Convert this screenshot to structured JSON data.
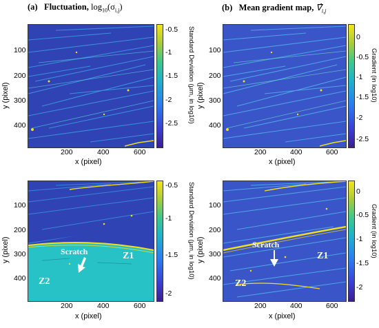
{
  "titles": {
    "a_label": "(a)",
    "a_text": "Fluctuation,",
    "a_math_base": "log",
    "a_math_sub": "10",
    "a_math_arg_open": "(σ",
    "a_math_arg_sub": "i,j",
    "a_math_arg_close": ")",
    "b_label": "(b)",
    "b_text": "Mean gradient map,",
    "b_math": "∇̂",
    "b_math_sub": "i,j"
  },
  "axes": {
    "xlabel": "x (pixel)",
    "ylabel": "y (pixel)",
    "x_ticks": [
      "200",
      "400",
      "600"
    ],
    "y_ticks": [
      "100",
      "200",
      "300",
      "400"
    ]
  },
  "colorbars": {
    "std_label": "Standard Deviation (μm, in log10)",
    "grad_label": "Gradient (in log10)",
    "tl_ticks": [
      "-0.5",
      "-1",
      "-1.5",
      "-2",
      "-2.5"
    ],
    "tr_ticks": [
      "0",
      "-0.5",
      "-1",
      "-1.5",
      "-2",
      "-2.5"
    ],
    "bl_ticks": [
      "-0.5",
      "-1",
      "-1.5",
      "-2"
    ],
    "br_ticks": [
      "0",
      "-0.5",
      "-1",
      "-1.5",
      "-2"
    ]
  },
  "annotations": {
    "scratch": "Scratch",
    "z1": "Z1",
    "z2": "Z2"
  },
  "colors": {
    "background_blue": "#2f43b5",
    "scratch_yellow": "#f2e01e",
    "z2_cyan": "#27c2c6"
  }
}
